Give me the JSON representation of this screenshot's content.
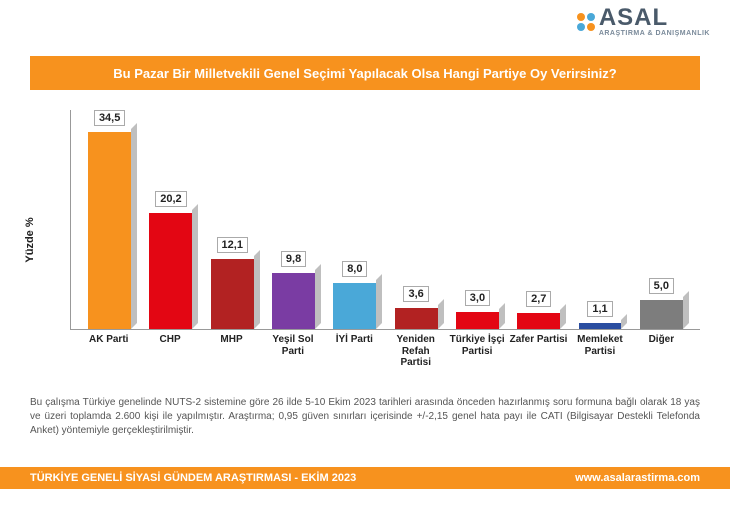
{
  "logo": {
    "title": "ASAL",
    "subtitle": "ARAŞTIRMA & DANIŞMANLIK",
    "dot_colors": [
      "#f7921e",
      "#4aa8d8",
      "#4aa8d8",
      "#f7921e"
    ]
  },
  "title": "Bu Pazar Bir Milletvekili Genel Seçimi Yapılacak Olsa Hangi Partiye Oy Verirsiniz?",
  "title_band_bg": "#f7921e",
  "chart": {
    "type": "bar",
    "ylabel": "Yüzde  %",
    "ylim_max": 38,
    "background": "#ffffff",
    "bars": [
      {
        "label": "AK Parti",
        "value": 34.5,
        "text": "34,5",
        "color": "#f7921e"
      },
      {
        "label": "CHP",
        "value": 20.2,
        "text": "20,2",
        "color": "#e30613"
      },
      {
        "label": "MHP",
        "value": 12.1,
        "text": "12,1",
        "color": "#b22222"
      },
      {
        "label": "Yeşil Sol Parti",
        "value": 9.8,
        "text": "9,8",
        "color": "#7a3ca3"
      },
      {
        "label": "İYİ Parti",
        "value": 8.0,
        "text": "8,0",
        "color": "#4aa8d8"
      },
      {
        "label": "Yeniden Refah Partisi",
        "value": 3.6,
        "text": "3,6",
        "color": "#b22222"
      },
      {
        "label": "Türkiye İşçi Partisi",
        "value": 3.0,
        "text": "3,0",
        "color": "#e30613"
      },
      {
        "label": "Zafer Partisi",
        "value": 2.7,
        "text": "2,7",
        "color": "#e30613"
      },
      {
        "label": "Memleket Partisi",
        "value": 1.1,
        "text": "1,1",
        "color": "#2a4da0"
      },
      {
        "label": "Diğer",
        "value": 5.0,
        "text": "5,0",
        "color": "#7d7d7d"
      }
    ]
  },
  "footnote": "Bu çalışma Türkiye genelinde NUTS-2 sistemine göre 26 ilde 5-10 Ekim 2023 tarihleri arasında önceden hazırlanmış soru formuna bağlı olarak 18 yaş ve üzeri toplamda 2.600 kişi ile yapılmıştır. Araştırma; 0,95 güven sınırları içerisinde +/-2,15 genel hata payı ile CATI (Bilgisayar Destekli Telefonda Anket) yöntemiyle gerçekleştirilmiştir.",
  "bottom": {
    "left": "TÜRKİYE GENELİ SİYASİ GÜNDEM ARAŞTIRMASI -  EKİM 2023",
    "right": "www.asalarastirma.com",
    "bg": "#f7921e"
  }
}
